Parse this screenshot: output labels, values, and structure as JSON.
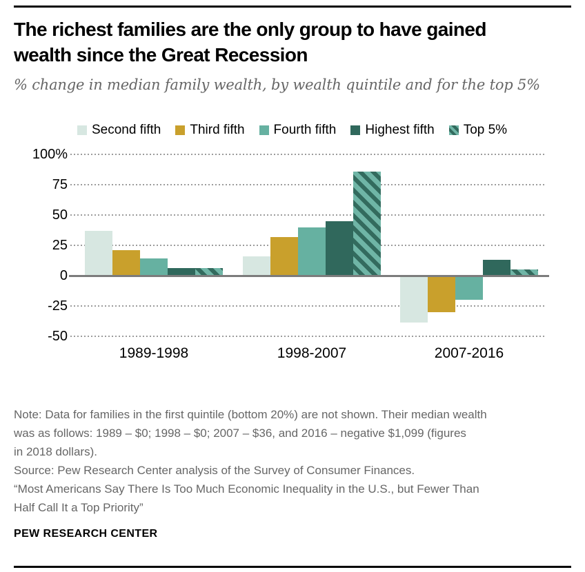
{
  "header": {
    "title": "The richest families are the only group to have gained\nwealth since the Great Recession",
    "subtitle": "% change in median family wealth, by wealth quintile and for the top 5%"
  },
  "chart_data": {
    "type": "bar",
    "categories": [
      "1989-1998",
      "1998-2007",
      "2007-2016"
    ],
    "series": [
      {
        "name": "Second fifth",
        "color": "#d7e7e1",
        "values": [
          37,
          16,
          -39
        ]
      },
      {
        "name": "Third fifth",
        "color": "#c9a02c",
        "values": [
          21,
          32,
          -30
        ]
      },
      {
        "name": "Fourth fifth",
        "color": "#66b1a1",
        "values": [
          14,
          40,
          -20
        ]
      },
      {
        "name": "Highest fifth",
        "color": "#30685c",
        "values": [
          6,
          45,
          13
        ]
      },
      {
        "name": "Top 5%",
        "color": "hatch",
        "values": [
          6,
          86,
          5
        ]
      }
    ],
    "hatch_colors": {
      "background": "#6fb5a6",
      "stripe": "#336b5e"
    },
    "y_ticks": [
      {
        "value": 100,
        "label": "100%"
      },
      {
        "value": 75,
        "label": "75"
      },
      {
        "value": 50,
        "label": "50"
      },
      {
        "value": 25,
        "label": "25"
      },
      {
        "value": 0,
        "label": "0"
      },
      {
        "value": -25,
        "label": "-25"
      },
      {
        "value": -50,
        "label": "-50"
      }
    ],
    "ylim": [
      -50,
      100
    ],
    "grid": "dotted horizontal",
    "legend_position": "top",
    "title": "The richest families are the only group to have gained wealth since the Great Recession",
    "xlabel": "",
    "ylabel": "% change in median family wealth"
  },
  "footer": {
    "note": "Note: Data for families in the first quintile (bottom 20%) are not shown. Their median wealth\nwas as follows: 1989 – $0; 1998 – $0; 2007 – $36, and 2016 – negative $1,099 (figures\nin 2018 dollars).",
    "source": "Source: Pew Research Center analysis of the Survey of Consumer Finances.",
    "quote": "“Most Americans Say There Is Too Much Economic Inequality in the U.S., but Fewer Than\nHalf Call It a Top Priority”",
    "wordmark": "PEW RESEARCH CENTER"
  }
}
